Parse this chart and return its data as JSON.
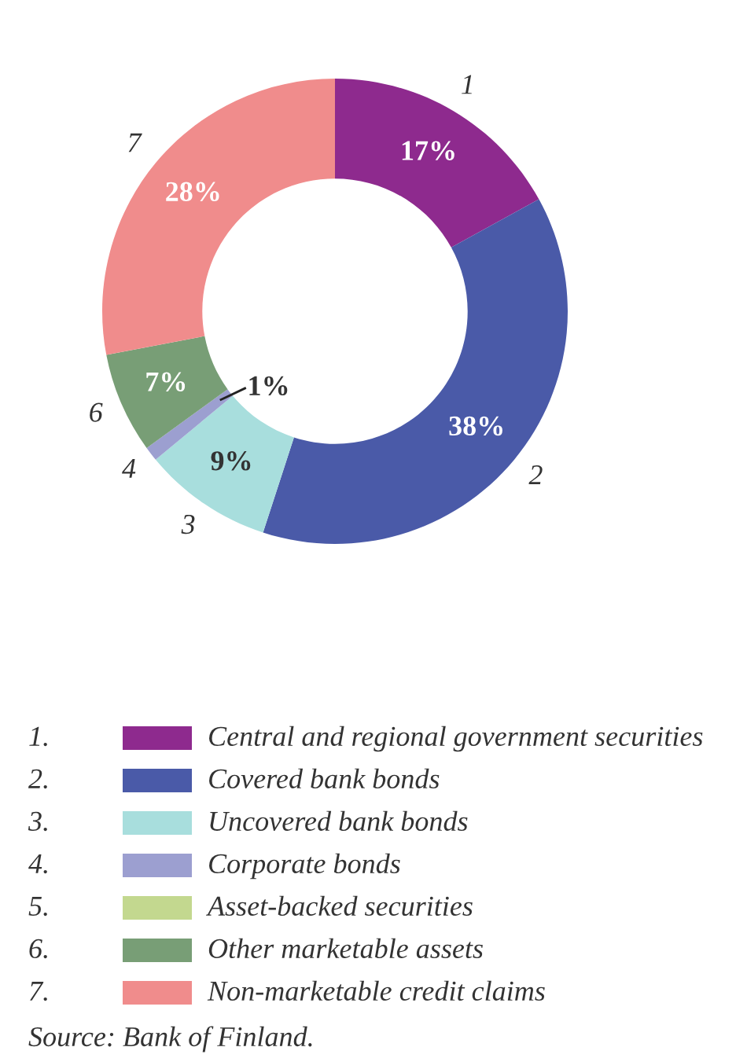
{
  "chart_data": {
    "type": "donut",
    "categories": [
      "Central and regional government securities",
      "Covered bank bonds",
      "Uncovered bank bonds",
      "Corporate bonds",
      "Asset-backed securities",
      "Other marketable assets",
      "Non-marketable credit claims"
    ],
    "values": [
      17,
      38,
      9,
      1,
      0,
      7,
      28
    ],
    "colors": [
      "#8e2a8e",
      "#4a5aa8",
      "#a8dedd",
      "#9c9fd0",
      "#c3d88f",
      "#789e76",
      "#f08c8c"
    ],
    "value_labels": [
      "17%",
      "38%",
      "9%",
      "1%",
      null,
      "7%",
      "28%"
    ],
    "annotations": [
      "1",
      "2",
      "3",
      "4",
      "6",
      "7",
      "1.",
      "2.",
      "3.",
      "4.",
      "5.",
      "6.",
      "7.",
      "Source: Bank of Finland."
    ],
    "legend": "bottom"
  }
}
